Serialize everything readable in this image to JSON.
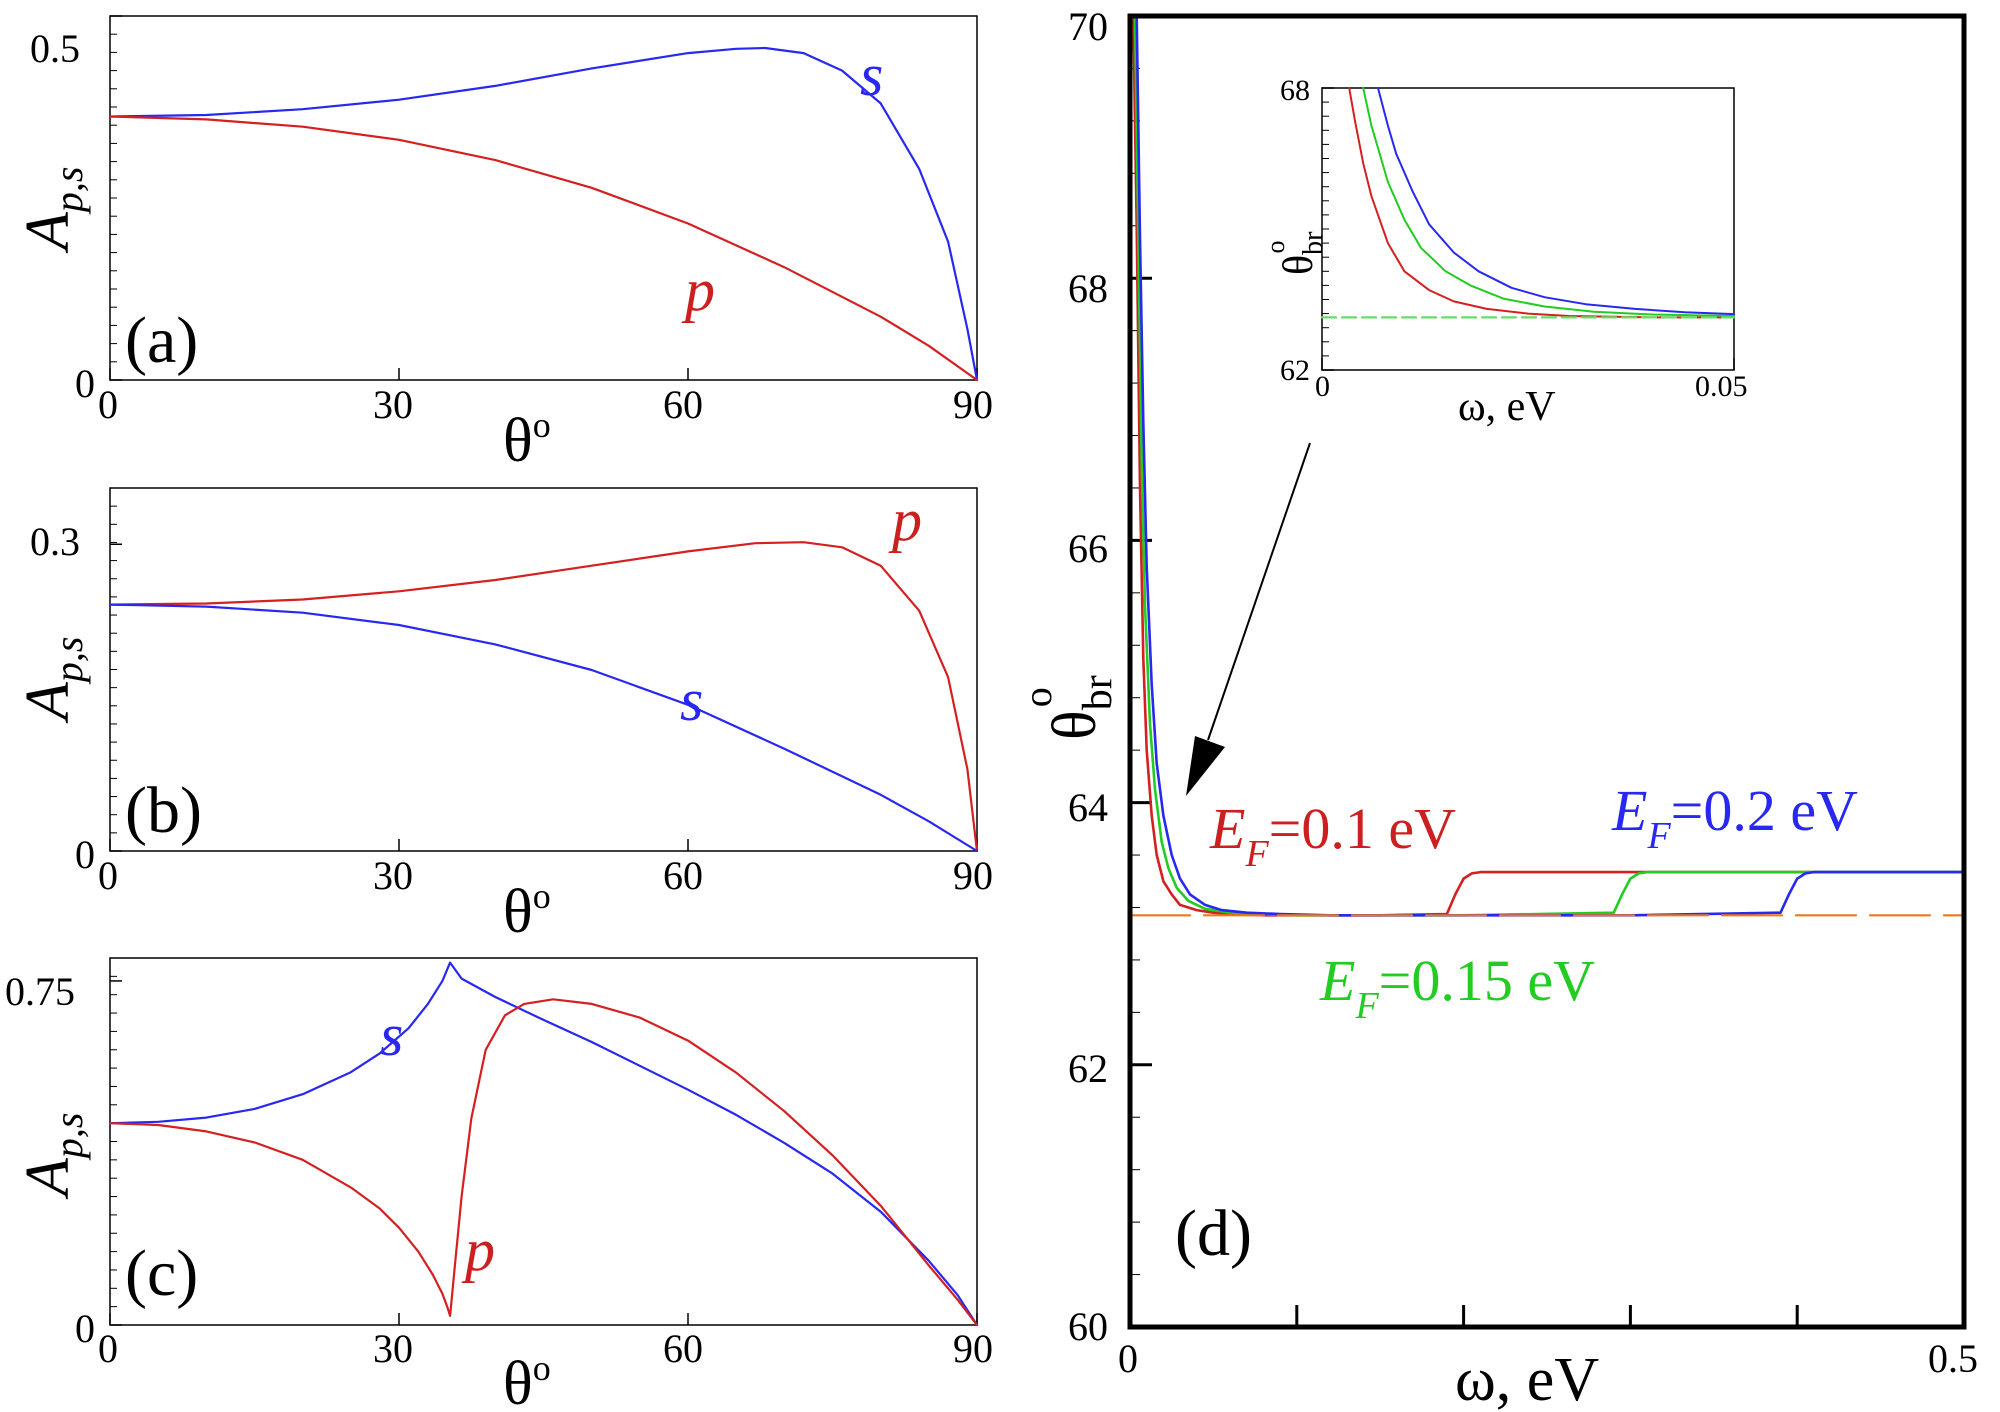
{
  "chart_data": [
    {
      "type": "line",
      "panel": "(a)",
      "xlabel": "θ°",
      "ylabel": "A_{p,s}",
      "xlim": [
        0,
        90
      ],
      "ylim": [
        0,
        0.5
      ],
      "xticks": [
        0,
        30,
        60,
        90
      ],
      "yticks": [
        0,
        0.5
      ],
      "ytick_labels": [
        "0",
        "0.5"
      ],
      "grid": false,
      "series": [
        {
          "name": "s",
          "color": "#2828f0",
          "x": [
            0,
            10,
            20,
            30,
            40,
            50,
            60,
            65,
            68,
            72,
            76,
            80,
            84,
            87,
            89,
            90
          ],
          "y": [
            0.362,
            0.364,
            0.372,
            0.385,
            0.404,
            0.428,
            0.449,
            0.455,
            0.456,
            0.449,
            0.425,
            0.38,
            0.29,
            0.19,
            0.07,
            0
          ]
        },
        {
          "name": "p",
          "color": "#d42020",
          "x": [
            0,
            10,
            20,
            30,
            40,
            50,
            60,
            70,
            80,
            85,
            90
          ],
          "y": [
            0.362,
            0.358,
            0.348,
            0.33,
            0.302,
            0.264,
            0.215,
            0.155,
            0.087,
            0.047,
            0
          ]
        }
      ]
    },
    {
      "type": "line",
      "panel": "(b)",
      "xlabel": "θ°",
      "ylabel": "A_{p,s}",
      "xlim": [
        0,
        90
      ],
      "ylim": [
        0,
        0.355
      ],
      "xticks": [
        0,
        30,
        60,
        90
      ],
      "yticks": [
        0,
        0.3
      ],
      "ytick_labels": [
        "0",
        "0.3"
      ],
      "grid": false,
      "series": [
        {
          "name": "p",
          "color": "#d42020",
          "x": [
            0,
            10,
            20,
            30,
            40,
            50,
            60,
            67,
            72,
            76,
            80,
            84,
            87,
            89,
            90
          ],
          "y": [
            0.241,
            0.242,
            0.246,
            0.254,
            0.265,
            0.279,
            0.293,
            0.301,
            0.302,
            0.297,
            0.279,
            0.235,
            0.17,
            0.08,
            0
          ]
        },
        {
          "name": "s",
          "color": "#2828f0",
          "x": [
            0,
            10,
            20,
            30,
            40,
            50,
            60,
            70,
            80,
            85,
            90
          ],
          "y": [
            0.241,
            0.239,
            0.233,
            0.221,
            0.202,
            0.177,
            0.143,
            0.1,
            0.055,
            0.029,
            0
          ]
        }
      ]
    },
    {
      "type": "line",
      "panel": "(c)",
      "xlabel": "θ°",
      "ylabel": "A_{p,s}",
      "xlim": [
        0,
        90
      ],
      "ylim": [
        0,
        0.8
      ],
      "xticks": [
        0,
        30,
        60,
        90
      ],
      "yticks": [
        0,
        0.75
      ],
      "ytick_labels": [
        "0",
        "0.75"
      ],
      "grid": false,
      "series": [
        {
          "name": "s",
          "color": "#2828f0",
          "x": [
            0,
            5,
            10,
            15,
            20,
            25,
            28,
            31,
            33,
            34.5,
            35.3,
            36.5,
            40,
            45,
            50,
            55,
            60,
            65,
            70,
            75,
            80,
            85,
            88,
            90
          ],
          "y": [
            0.44,
            0.443,
            0.452,
            0.471,
            0.503,
            0.551,
            0.592,
            0.647,
            0.7,
            0.75,
            0.79,
            0.755,
            0.715,
            0.665,
            0.617,
            0.565,
            0.513,
            0.458,
            0.397,
            0.33,
            0.247,
            0.14,
            0.065,
            0
          ]
        },
        {
          "name": "p",
          "color": "#d42020",
          "x": [
            0,
            5,
            10,
            15,
            20,
            25,
            28,
            30,
            32,
            33.5,
            34.5,
            35,
            35.3,
            35.8,
            36.5,
            37.5,
            39,
            41,
            43,
            46,
            50,
            55,
            60,
            65,
            70,
            75,
            80,
            85,
            88,
            90
          ],
          "y": [
            0.44,
            0.436,
            0.422,
            0.398,
            0.36,
            0.3,
            0.254,
            0.212,
            0.16,
            0.11,
            0.068,
            0.04,
            0.02,
            0.13,
            0.28,
            0.45,
            0.6,
            0.675,
            0.7,
            0.71,
            0.7,
            0.67,
            0.62,
            0.55,
            0.466,
            0.37,
            0.26,
            0.13,
            0.055,
            0
          ]
        }
      ]
    },
    {
      "type": "line",
      "panel": "(d)",
      "xlabel": "ω, eV",
      "ylabel": "θ_br^o",
      "xlim": [
        0,
        0.5
      ],
      "ylim": [
        60,
        70
      ],
      "xticks": [
        0,
        0.1,
        0.2,
        0.3,
        0.4,
        0.5
      ],
      "xtick_labels": [
        "0",
        "",
        "",
        "",
        "",
        "0.5"
      ],
      "yticks": [
        60,
        62,
        64,
        66,
        68,
        70
      ],
      "grid": false,
      "series": [
        {
          "name": "E_F=0.1 eV",
          "color": "#d42020",
          "x": [
            0.002,
            0.004,
            0.006,
            0.008,
            0.01,
            0.013,
            0.016,
            0.02,
            0.025,
            0.03,
            0.04,
            0.05,
            0.06,
            0.08,
            0.1,
            0.15,
            0.19,
            0.195,
            0.2,
            0.205,
            0.21,
            0.5
          ],
          "y": [
            70,
            68.4,
            66.4,
            65.1,
            64.4,
            63.9,
            63.6,
            63.4,
            63.3,
            63.22,
            63.18,
            63.16,
            63.15,
            63.14,
            63.14,
            63.14,
            63.15,
            63.3,
            63.42,
            63.46,
            63.47,
            63.47
          ]
        },
        {
          "name": "E_F=0.15 eV",
          "color": "#22cc22",
          "x": [
            0.003,
            0.005,
            0.007,
            0.009,
            0.012,
            0.015,
            0.019,
            0.023,
            0.028,
            0.035,
            0.045,
            0.06,
            0.08,
            0.1,
            0.2,
            0.29,
            0.295,
            0.3,
            0.305,
            0.31,
            0.5
          ],
          "y": [
            70,
            68.3,
            66.6,
            65.5,
            64.6,
            64.1,
            63.7,
            63.5,
            63.35,
            63.25,
            63.19,
            63.16,
            63.15,
            63.14,
            63.14,
            63.16,
            63.3,
            63.42,
            63.46,
            63.47,
            63.47
          ]
        },
        {
          "name": "E_F=0.2 eV",
          "color": "#2828f0",
          "x": [
            0.004,
            0.006,
            0.008,
            0.01,
            0.013,
            0.016,
            0.02,
            0.025,
            0.03,
            0.036,
            0.045,
            0.055,
            0.07,
            0.09,
            0.12,
            0.2,
            0.3,
            0.39,
            0.395,
            0.4,
            0.405,
            0.41,
            0.5
          ],
          "y": [
            70,
            68.3,
            66.9,
            65.8,
            64.9,
            64.3,
            63.9,
            63.6,
            63.42,
            63.3,
            63.22,
            63.18,
            63.16,
            63.15,
            63.14,
            63.14,
            63.14,
            63.16,
            63.3,
            63.42,
            63.46,
            63.47,
            63.47
          ]
        },
        {
          "color": "#f07818",
          "dashed": true,
          "x": [
            0,
            0.5
          ],
          "y": [
            63.14,
            63.14
          ]
        }
      ],
      "annotations": {
        "panel_label": "(d)",
        "labels": [
          {
            "text_pre": "E",
            "sub": "F",
            "text_post": "=0.1 eV",
            "color": "#cc2020"
          },
          {
            "text_pre": "E",
            "sub": "F",
            "text_post": "=0.15 eV",
            "color": "#22cc22"
          },
          {
            "text_pre": "E",
            "sub": "F",
            "text_post": "=0.2 eV",
            "color": "#2828f0"
          }
        ]
      }
    },
    {
      "type": "line",
      "panel": "inset",
      "xlabel": "ω, eV",
      "ylabel": "θ_br^o",
      "xlim": [
        0,
        0.05
      ],
      "ylim": [
        62,
        68
      ],
      "xticks": [
        0,
        0.05
      ],
      "xtick_labels": [
        "0",
        "0.05"
      ],
      "yticks": [
        62,
        68
      ],
      "grid": false,
      "series": [
        {
          "name": "E_F=0.1 eV",
          "color": "#d42020",
          "x": [
            0.0033,
            0.004,
            0.005,
            0.006,
            0.008,
            0.01,
            0.013,
            0.016,
            0.02,
            0.025,
            0.03,
            0.04,
            0.05
          ],
          "y": [
            68,
            67.3,
            66.4,
            65.7,
            64.7,
            64.1,
            63.7,
            63.46,
            63.3,
            63.2,
            63.15,
            63.12,
            63.12
          ]
        },
        {
          "name": "E_F=0.15 eV",
          "color": "#22cc22",
          "x": [
            0.005,
            0.006,
            0.007,
            0.008,
            0.01,
            0.012,
            0.015,
            0.018,
            0.022,
            0.027,
            0.033,
            0.04,
            0.05
          ],
          "y": [
            68,
            67.2,
            66.6,
            66.0,
            65.2,
            64.6,
            64.1,
            63.8,
            63.52,
            63.35,
            63.24,
            63.18,
            63.15
          ]
        },
        {
          "name": "E_F=0.2 eV",
          "color": "#2828f0",
          "x": [
            0.0068,
            0.008,
            0.009,
            0.011,
            0.013,
            0.016,
            0.019,
            0.023,
            0.027,
            0.032,
            0.038,
            0.044,
            0.05
          ],
          "y": [
            68,
            67.2,
            66.6,
            65.8,
            65.1,
            64.5,
            64.1,
            63.75,
            63.55,
            63.4,
            63.3,
            63.23,
            63.19
          ]
        },
        {
          "color": "#66dd66",
          "dashed": true,
          "x": [
            0,
            0.05
          ],
          "y": [
            63.12,
            63.12
          ]
        }
      ]
    }
  ],
  "labels": {
    "a": "(a)",
    "b": "(b)",
    "c": "(c)",
    "d": "(d)",
    "s": "s",
    "p": "p",
    "theta": "θ",
    "deg": "o",
    "omega_ev": "ω, eV",
    "A": "A",
    "A_sub": "p,s",
    "theta_br": "θ",
    "br_sub": "br",
    "br_sup": "o"
  }
}
